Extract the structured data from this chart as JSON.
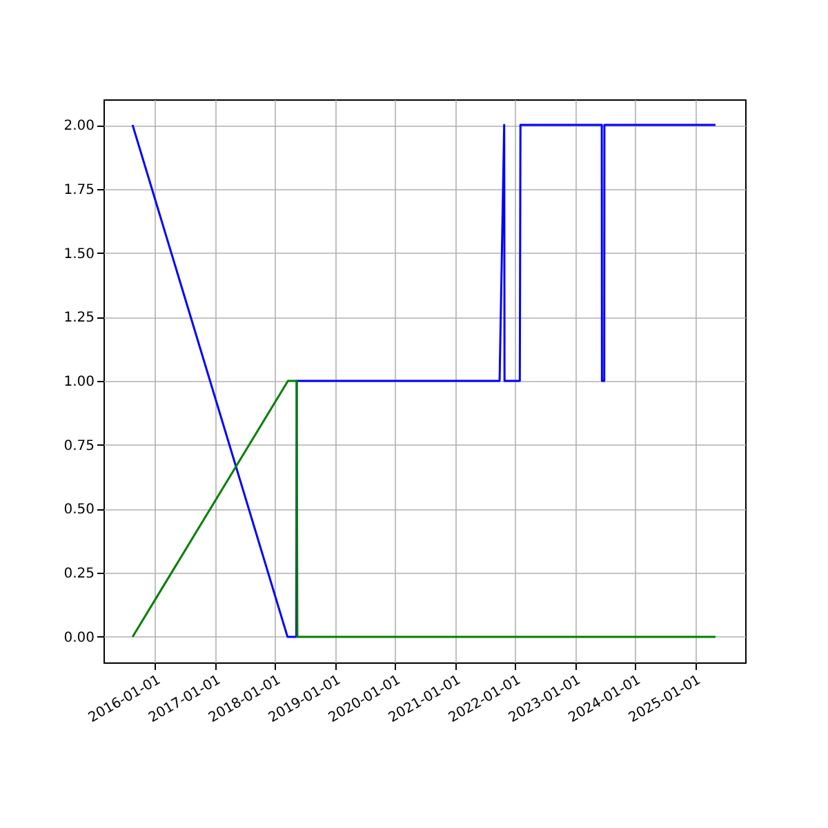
{
  "chart_data": {
    "type": "line",
    "xlim": [
      "2015-02-21",
      "2025-11-01"
    ],
    "xticks": [
      "2016-01-01",
      "2017-01-01",
      "2018-01-01",
      "2019-01-01",
      "2020-01-01",
      "2021-01-01",
      "2022-01-01",
      "2023-01-01",
      "2024-01-01",
      "2025-01-01"
    ],
    "ylim": [
      -0.1,
      2.1
    ],
    "yticks": [
      {
        "value": 0,
        "label": "0.00"
      },
      {
        "value": 0.25,
        "label": "0.25"
      },
      {
        "value": 0.5,
        "label": "0.50"
      },
      {
        "value": 0.75,
        "label": "0.75"
      },
      {
        "value": 1,
        "label": "1.00"
      },
      {
        "value": 1.25,
        "label": "1.25"
      },
      {
        "value": 1.5,
        "label": "1.50"
      },
      {
        "value": 1.75,
        "label": "1.75"
      },
      {
        "value": 2,
        "label": "2.00"
      }
    ],
    "grid": true,
    "series": [
      {
        "color": "#0000ff",
        "x": [
          "2015-08-17",
          "2018-03-17",
          "2018-05-10",
          "2018-05-12",
          "2021-09-28",
          "2021-10-26",
          "2021-10-28",
          "2022-01-29",
          "2022-02-02",
          "2023-06-12",
          "2023-06-13",
          "2023-06-27",
          "2023-06-28",
          "2025-05-04"
        ],
        "values": [
          2,
          0,
          0,
          1,
          1,
          2,
          1,
          1,
          2,
          2,
          1,
          1,
          2,
          2
        ]
      },
      {
        "color": "#008000",
        "x": [
          "2015-08-17",
          "2018-03-20",
          "2018-05-12",
          "2018-05-16",
          "2025-05-04"
        ],
        "values": [
          0,
          1,
          1,
          0,
          0
        ]
      }
    ]
  }
}
